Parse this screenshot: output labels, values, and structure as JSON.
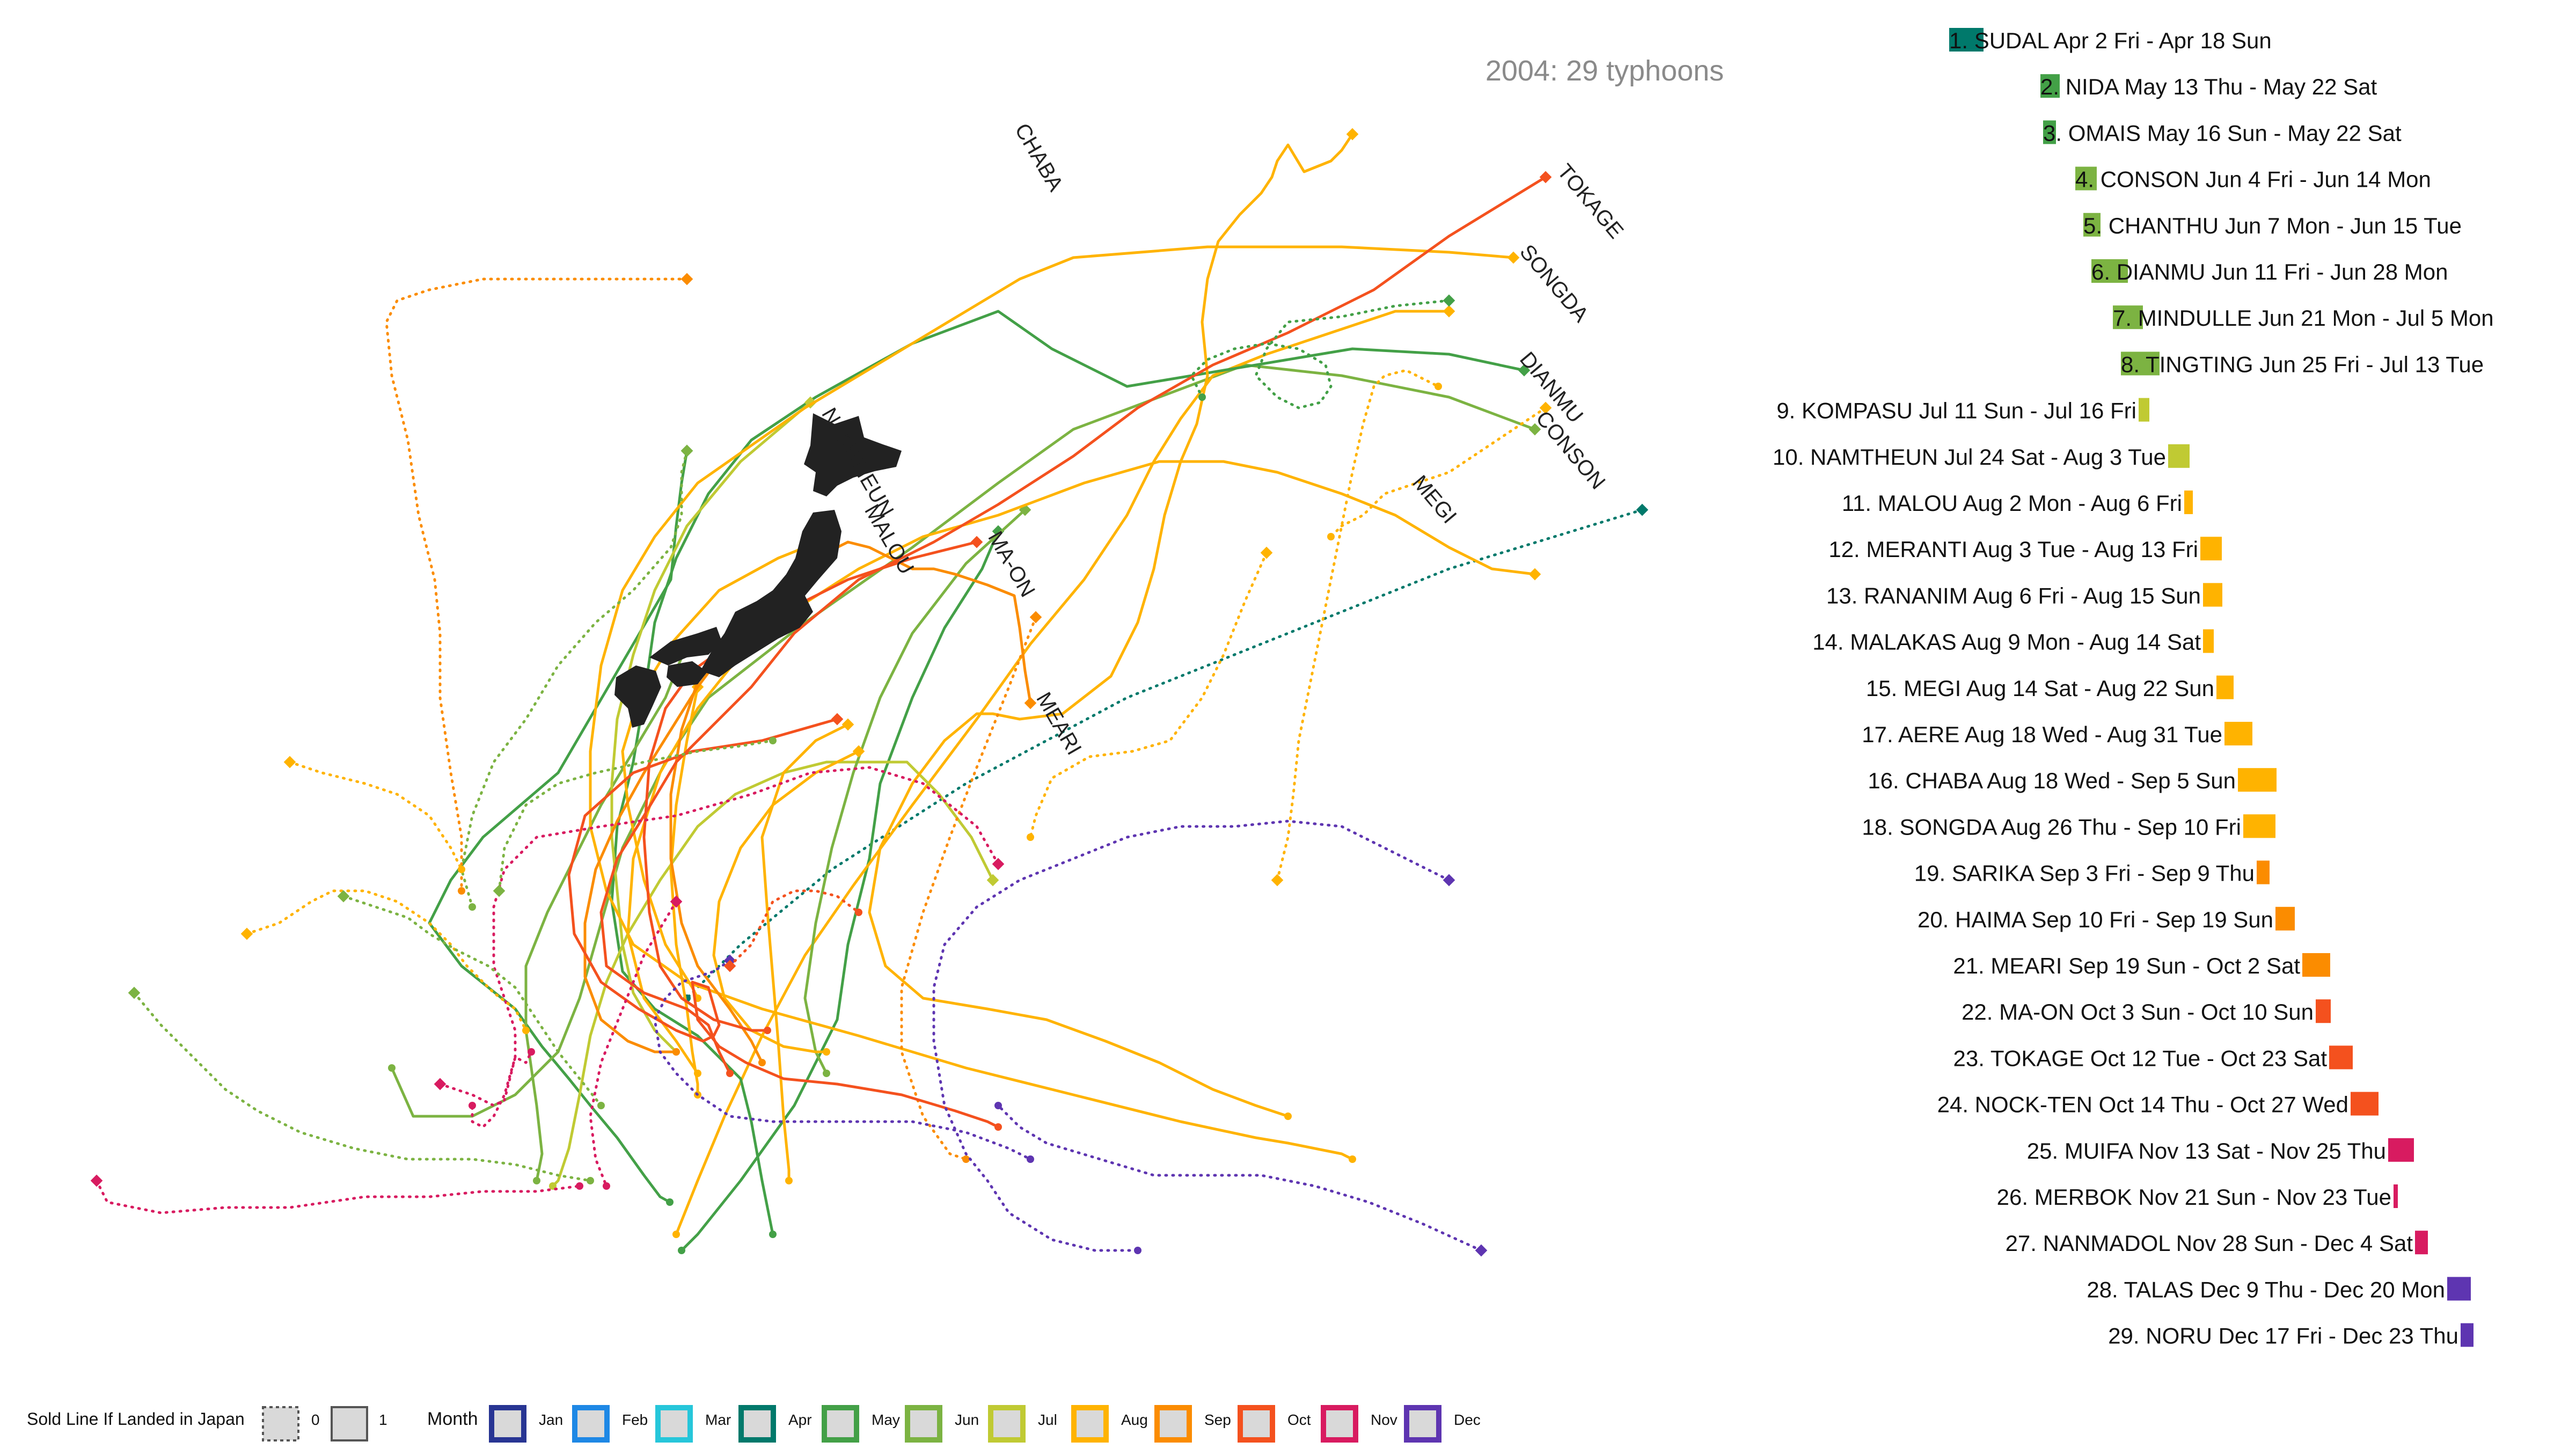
{
  "title": "2004: 29 typhoons",
  "colors": {
    "Jan": "#283593",
    "Feb": "#1e88e5",
    "Mar": "#26c6da",
    "Apr": "#00796b",
    "May": "#43a047",
    "Jun": "#7cb342",
    "Jul": "#c0ca33",
    "Aug": "#ffb300",
    "Sep": "#fb8c00",
    "Oct": "#f4511e",
    "Nov": "#d81b60",
    "Dec": "#5e35b1",
    "japan": "#222222"
  },
  "legend": {
    "landed_label": "Sold Line If Landed in Japan",
    "landed_0": "0",
    "landed_1": "1",
    "month_label": "Month",
    "months": [
      "Jan",
      "Feb",
      "Mar",
      "Apr",
      "May",
      "Jun",
      "Jul",
      "Aug",
      "Sep",
      "Oct",
      "Nov",
      "Dec"
    ]
  },
  "typhoons": [
    {
      "label": "1. SUDAL Apr  2 Fri - Apr 18 Sun",
      "month": "Apr",
      "days": 16,
      "landed": false,
      "name": ""
    },
    {
      "label": "2. NIDA May 13 Thu - May 22 Sat",
      "month": "May",
      "days": 9,
      "landed": false,
      "name": ""
    },
    {
      "label": "3. OMAIS May 16 Sun - May 22 Sat",
      "month": "May",
      "days": 6,
      "landed": false,
      "name": ""
    },
    {
      "label": "4. CONSON Jun  4 Fri - Jun 14 Mon",
      "month": "Jun",
      "days": 10,
      "landed": true,
      "name": "CONSON"
    },
    {
      "label": "5. CHANTHU Jun  7 Mon - Jun 15 Tue",
      "month": "Jun",
      "days": 8,
      "landed": false,
      "name": ""
    },
    {
      "label": "6. DIANMU Jun 11 Fri - Jun 28 Mon",
      "month": "Jun",
      "days": 17,
      "landed": true,
      "name": "DIANMU"
    },
    {
      "label": "7. MINDULLE Jun 21 Mon - Jul  5 Mon",
      "month": "Jun",
      "days": 14,
      "landed": false,
      "name": ""
    },
    {
      "label": "8. TINGTING Jun 25 Fri - Jul 13 Tue",
      "month": "Jun",
      "days": 18,
      "landed": false,
      "name": ""
    },
    {
      "label": "9. KOMPASU Jul 11 Sun - Jul 16 Fri",
      "month": "Jul",
      "days": 5,
      "landed": false,
      "name": ""
    },
    {
      "label": "10. NAMTHEUN Jul 24 Sat - Aug  3 Tue",
      "month": "Jul",
      "days": 10,
      "landed": true,
      "name": "NAMTHEUN"
    },
    {
      "label": "11. MALOU Aug  2 Mon - Aug  6 Fri",
      "month": "Aug",
      "days": 4,
      "landed": true,
      "name": "MALOU"
    },
    {
      "label": "12. MERANTI Aug  3 Tue - Aug 13 Fri",
      "month": "Aug",
      "days": 10,
      "landed": false,
      "name": ""
    },
    {
      "label": "13. RANANIM Aug  6 Fri - Aug 15 Sun",
      "month": "Aug",
      "days": 9,
      "landed": false,
      "name": ""
    },
    {
      "label": "14. MALAKAS Aug  9 Mon - Aug 14 Sat",
      "month": "Aug",
      "days": 5,
      "landed": false,
      "name": ""
    },
    {
      "label": "15. MEGI Aug 14 Sat - Aug 22 Sun",
      "month": "Aug",
      "days": 8,
      "landed": true,
      "name": "MEGI"
    },
    {
      "label": "17. AERE Aug 18 Wed - Aug 31 Tue",
      "month": "Aug",
      "days": 13,
      "landed": false,
      "name": ""
    },
    {
      "label": "16. CHABA Aug 18 Wed - Sep  5 Sun",
      "month": "Aug",
      "days": 18,
      "landed": true,
      "name": "CHABA"
    },
    {
      "label": "18. SONGDA Aug 26 Thu - Sep 10 Fri",
      "month": "Aug",
      "days": 15,
      "landed": true,
      "name": "SONGDA"
    },
    {
      "label": "19. SARIKA Sep  3 Fri - Sep  9 Thu",
      "month": "Sep",
      "days": 6,
      "landed": false,
      "name": ""
    },
    {
      "label": "20. HAIMA Sep 10 Fri - Sep 19 Sun",
      "month": "Sep",
      "days": 9,
      "landed": false,
      "name": ""
    },
    {
      "label": "21. MEARI Sep 19 Sun - Oct  2 Sat",
      "month": "Sep",
      "days": 13,
      "landed": true,
      "name": "MEARI"
    },
    {
      "label": "22. MA-ON Oct  3 Sun - Oct 10 Sun",
      "month": "Oct",
      "days": 7,
      "landed": true,
      "name": "MA-ON"
    },
    {
      "label": "23. TOKAGE Oct 12 Tue - Oct 23 Sat",
      "month": "Oct",
      "days": 11,
      "landed": true,
      "name": "TOKAGE"
    },
    {
      "label": "24. NOCK-TEN Oct 14 Thu - Oct 27 Wed",
      "month": "Oct",
      "days": 13,
      "landed": false,
      "name": ""
    },
    {
      "label": "25. MUIFA Nov 13 Sat - Nov 25 Thu",
      "month": "Nov",
      "days": 12,
      "landed": false,
      "name": ""
    },
    {
      "label": "26. MERBOK Nov 21 Sun - Nov 23 Tue",
      "month": "Nov",
      "days": 2,
      "landed": false,
      "name": ""
    },
    {
      "label": "27. NANMADOL Nov 28 Sun - Dec  4 Sat",
      "month": "Nov",
      "days": 6,
      "landed": false,
      "name": ""
    },
    {
      "label": "28. TALAS Dec  9 Thu - Dec 20 Mon",
      "month": "Dec",
      "days": 11,
      "landed": false,
      "name": ""
    },
    {
      "label": "29. NORU Dec 17 Fri - Dec 23 Thu",
      "month": "Dec",
      "days": 6,
      "landed": false,
      "name": ""
    }
  ]
}
